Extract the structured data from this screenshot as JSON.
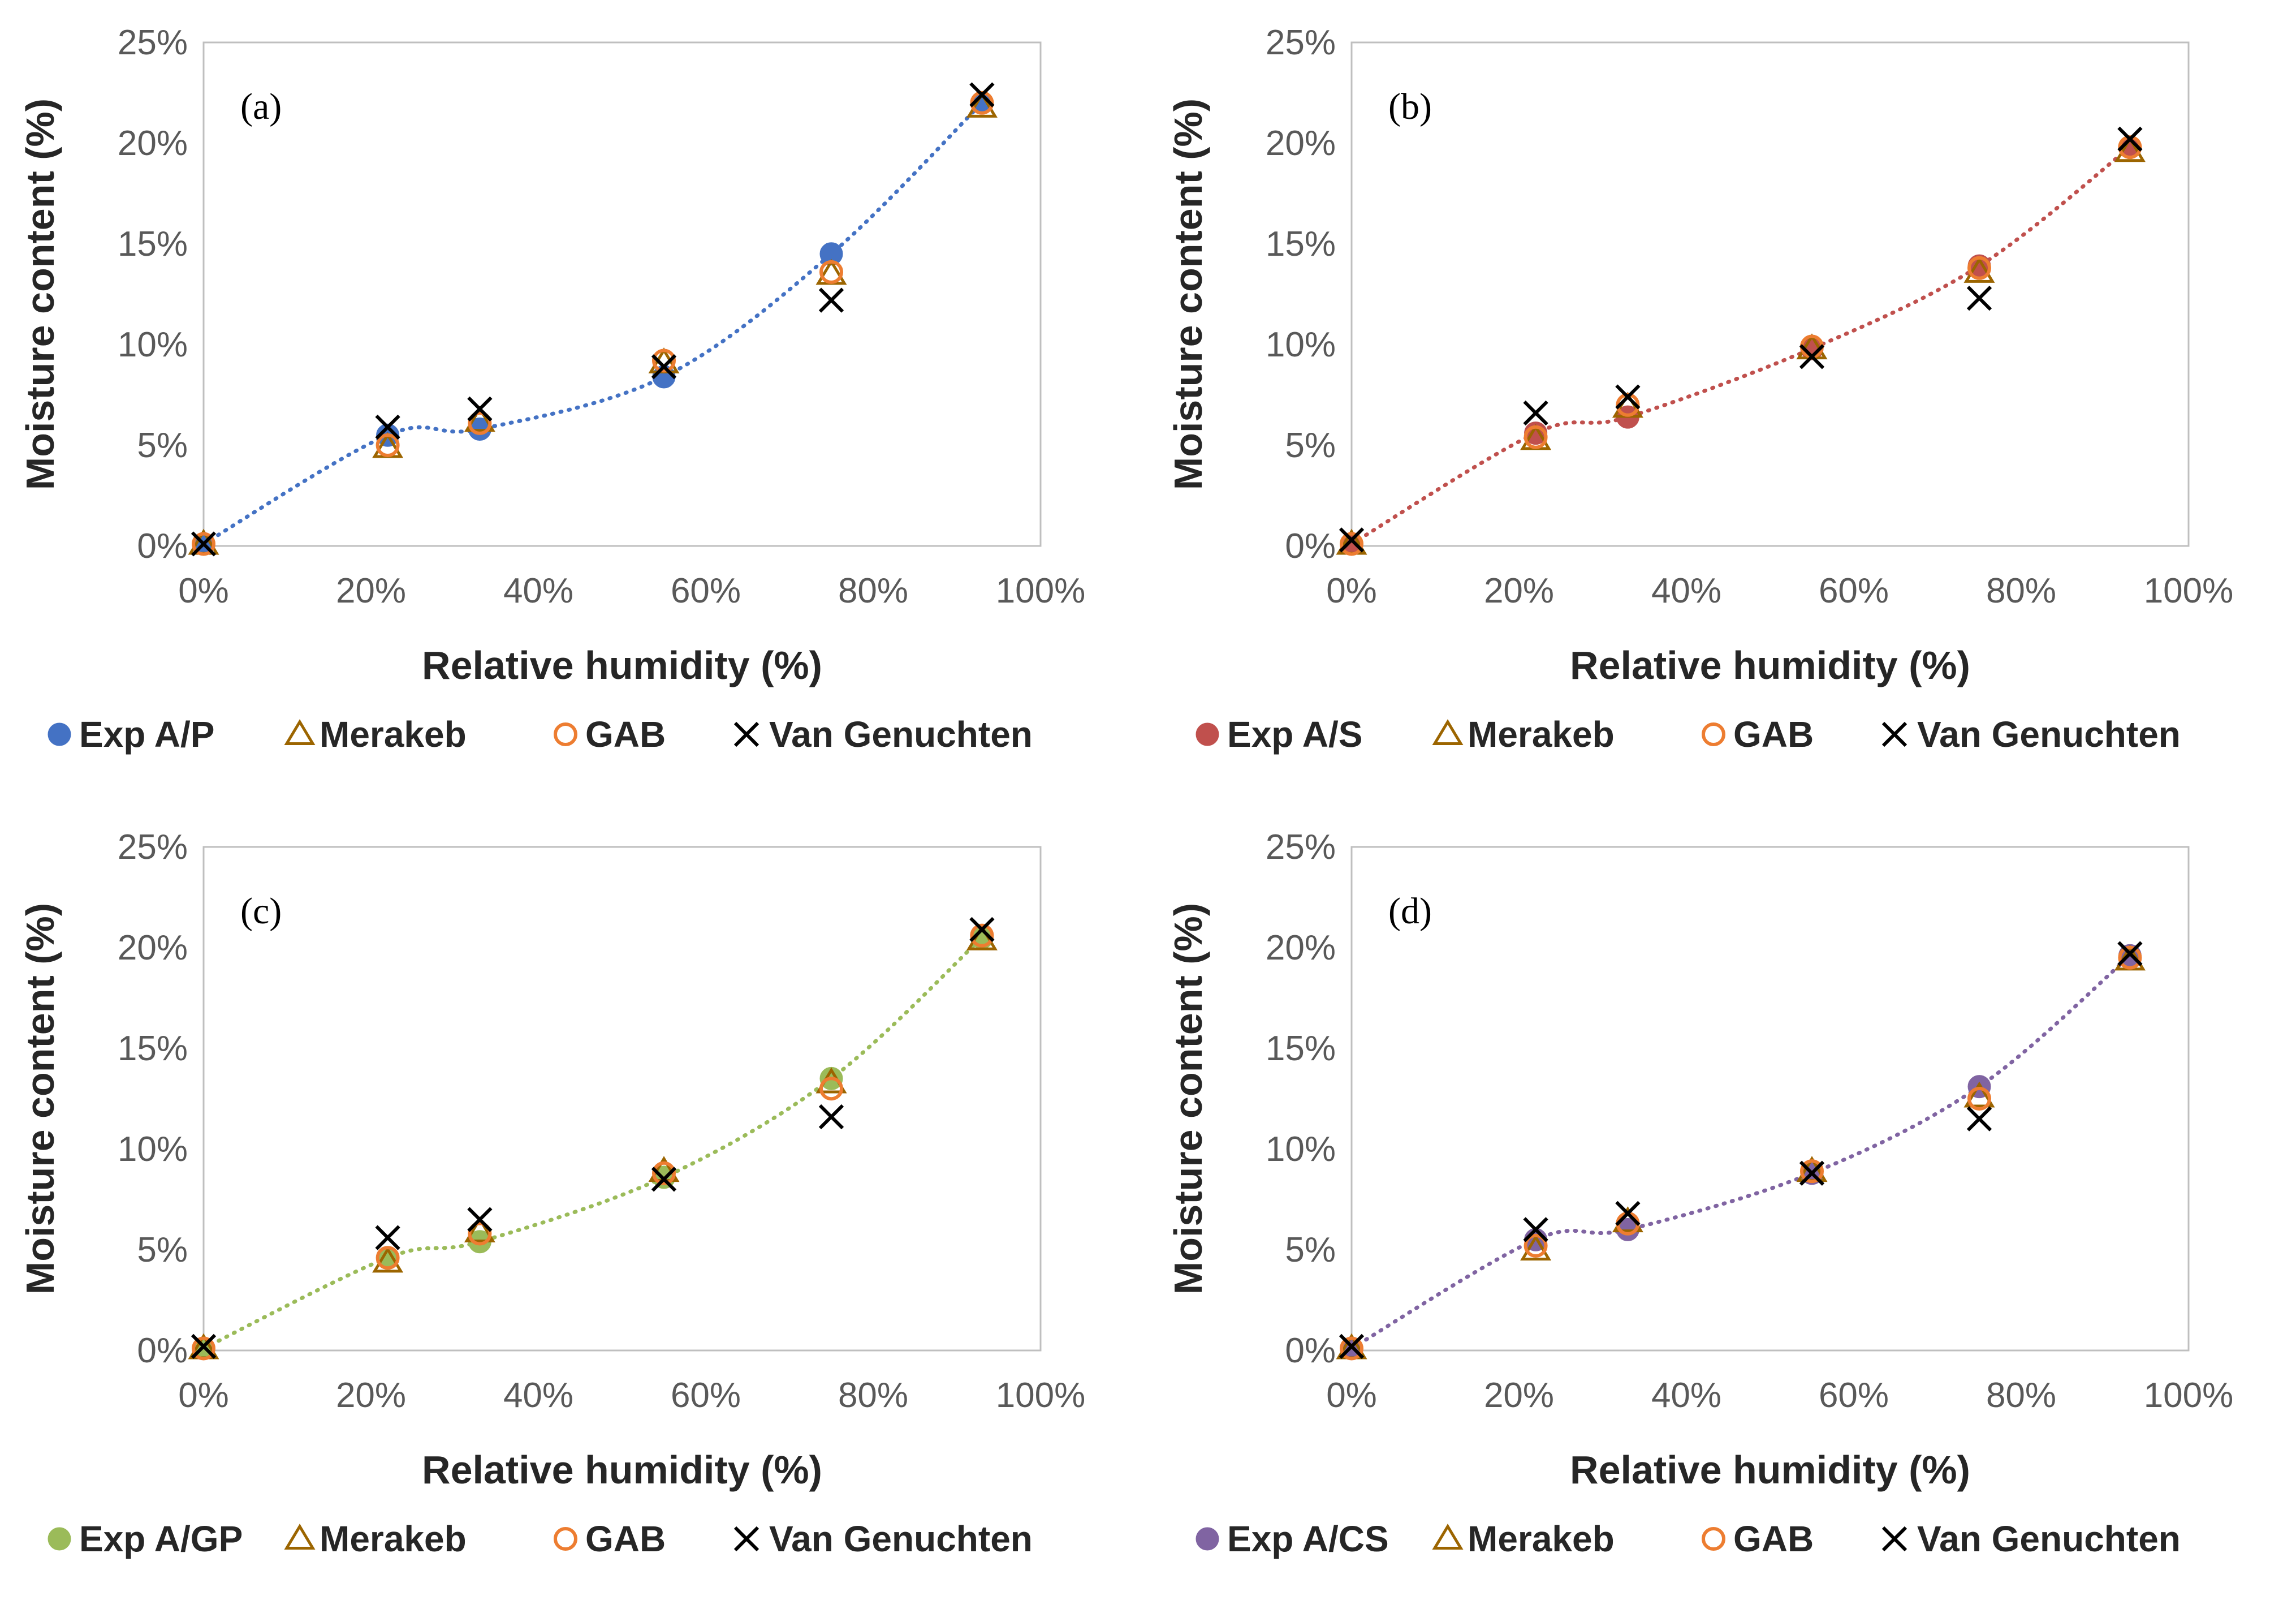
{
  "chart_data": [
    {
      "type": "scatter",
      "panel": "(a)",
      "xlabel": "Relative humidity (%)",
      "ylabel": "Moisture content (%)",
      "xlim": [
        0,
        100
      ],
      "ylim": [
        0,
        25
      ],
      "x_ticks": [
        "0%",
        "20%",
        "40%",
        "60%",
        "80%",
        "100%"
      ],
      "y_ticks": [
        "0%",
        "5%",
        "10%",
        "15%",
        "20%",
        "25%"
      ],
      "legend_position": "bottom",
      "trend_color": "#4472C4",
      "series": [
        {
          "name": "Exp A/P",
          "marker": "filled-circle",
          "color": "#4472C4",
          "x": [
            0,
            22,
            33,
            55,
            75,
            93
          ],
          "y": [
            0.1,
            5.5,
            5.8,
            8.4,
            14.5,
            22.0
          ]
        },
        {
          "name": "Merakeb",
          "marker": "open-triangle",
          "color": "#9C6500",
          "x": [
            0,
            22,
            33,
            55,
            75,
            93
          ],
          "y": [
            0.1,
            4.9,
            6.2,
            9.1,
            13.5,
            21.8
          ]
        },
        {
          "name": "GAB",
          "marker": "open-circle",
          "color": "#ED7D31",
          "x": [
            0,
            22,
            33,
            55,
            75,
            93
          ],
          "y": [
            0.1,
            5.0,
            6.1,
            9.2,
            13.6,
            22.0
          ]
        },
        {
          "name": "Van Genuchten",
          "marker": "cross",
          "color": "#000000",
          "x": [
            0,
            22,
            33,
            55,
            75,
            93
          ],
          "y": [
            0.1,
            5.9,
            6.8,
            8.9,
            12.2,
            22.4
          ]
        }
      ]
    },
    {
      "type": "scatter",
      "panel": "(b)",
      "xlabel": "Relative humidity (%)",
      "ylabel": "Moisture content (%)",
      "xlim": [
        0,
        100
      ],
      "ylim": [
        0,
        25
      ],
      "x_ticks": [
        "0%",
        "20%",
        "40%",
        "60%",
        "80%",
        "100%"
      ],
      "y_ticks": [
        "0%",
        "5%",
        "10%",
        "15%",
        "20%",
        "25%"
      ],
      "legend_position": "bottom",
      "trend_color": "#C0504D",
      "series": [
        {
          "name": "Exp A/S",
          "marker": "filled-circle",
          "color": "#C0504D",
          "x": [
            0,
            22,
            33,
            55,
            75,
            93
          ],
          "y": [
            0.1,
            5.6,
            6.4,
            9.8,
            13.9,
            19.8
          ]
        },
        {
          "name": "Merakeb",
          "marker": "open-triangle",
          "color": "#9C6500",
          "x": [
            0,
            22,
            33,
            55,
            75,
            93
          ],
          "y": [
            0.1,
            5.3,
            6.9,
            9.8,
            13.6,
            19.6
          ]
        },
        {
          "name": "GAB",
          "marker": "open-circle",
          "color": "#ED7D31",
          "x": [
            0,
            22,
            33,
            55,
            75,
            93
          ],
          "y": [
            0.1,
            5.4,
            7.0,
            9.9,
            13.8,
            19.8
          ]
        },
        {
          "name": "Van Genuchten",
          "marker": "cross",
          "color": "#000000",
          "x": [
            0,
            22,
            33,
            55,
            75,
            93
          ],
          "y": [
            0.3,
            6.6,
            7.4,
            9.4,
            12.3,
            20.2
          ]
        }
      ]
    },
    {
      "type": "scatter",
      "panel": "(c)",
      "xlabel": "Relative humidity (%)",
      "ylabel": "Moisture content (%)",
      "xlim": [
        0,
        100
      ],
      "ylim": [
        0,
        25
      ],
      "x_ticks": [
        "0%",
        "20%",
        "40%",
        "60%",
        "80%",
        "100%"
      ],
      "y_ticks": [
        "0%",
        "5%",
        "10%",
        "15%",
        "20%",
        "25%"
      ],
      "legend_position": "bottom",
      "trend_color": "#9BBB59",
      "series": [
        {
          "name": "Exp A/GP",
          "marker": "filled-circle",
          "color": "#9BBB59",
          "x": [
            0,
            22,
            33,
            55,
            75,
            93
          ],
          "y": [
            0.1,
            4.6,
            5.4,
            8.6,
            13.5,
            20.5
          ]
        },
        {
          "name": "Merakeb",
          "marker": "open-triangle",
          "color": "#9C6500",
          "x": [
            0,
            22,
            33,
            55,
            75,
            93
          ],
          "y": [
            0.1,
            4.4,
            5.9,
            8.9,
            13.3,
            20.4
          ]
        },
        {
          "name": "GAB",
          "marker": "open-circle",
          "color": "#ED7D31",
          "x": [
            0,
            22,
            33,
            55,
            75,
            93
          ],
          "y": [
            0.1,
            4.6,
            5.8,
            8.8,
            13.0,
            20.6
          ]
        },
        {
          "name": "Van Genuchten",
          "marker": "cross",
          "color": "#000000",
          "x": [
            0,
            22,
            33,
            55,
            75,
            93
          ],
          "y": [
            0.2,
            5.6,
            6.5,
            8.5,
            11.6,
            20.9
          ]
        }
      ]
    },
    {
      "type": "scatter",
      "panel": "(d)",
      "xlabel": "Relative humidity (%)",
      "ylabel": "Moisture content (%)",
      "xlim": [
        0,
        100
      ],
      "ylim": [
        0,
        25
      ],
      "x_ticks": [
        "0%",
        "20%",
        "40%",
        "60%",
        "80%",
        "100%"
      ],
      "y_ticks": [
        "0%",
        "5%",
        "10%",
        "15%",
        "20%",
        "25%"
      ],
      "legend_position": "bottom",
      "trend_color": "#8064A2",
      "series": [
        {
          "name": "Exp A/CS",
          "marker": "filled-circle",
          "color": "#8064A2",
          "x": [
            0,
            22,
            33,
            55,
            75,
            93
          ],
          "y": [
            0.1,
            5.5,
            6.0,
            8.8,
            13.1,
            19.6
          ]
        },
        {
          "name": "Merakeb",
          "marker": "open-triangle",
          "color": "#9C6500",
          "x": [
            0,
            22,
            33,
            55,
            75,
            93
          ],
          "y": [
            0.1,
            5.0,
            6.4,
            8.9,
            12.6,
            19.4
          ]
        },
        {
          "name": "GAB",
          "marker": "open-circle",
          "color": "#ED7D31",
          "x": [
            0,
            22,
            33,
            55,
            75,
            93
          ],
          "y": [
            0.1,
            5.2,
            6.3,
            8.9,
            12.5,
            19.5
          ]
        },
        {
          "name": "Van Genuchten",
          "marker": "cross",
          "color": "#000000",
          "x": [
            0,
            22,
            33,
            55,
            75,
            93
          ],
          "y": [
            0.2,
            6.0,
            6.8,
            8.8,
            11.5,
            19.7
          ]
        }
      ]
    }
  ]
}
